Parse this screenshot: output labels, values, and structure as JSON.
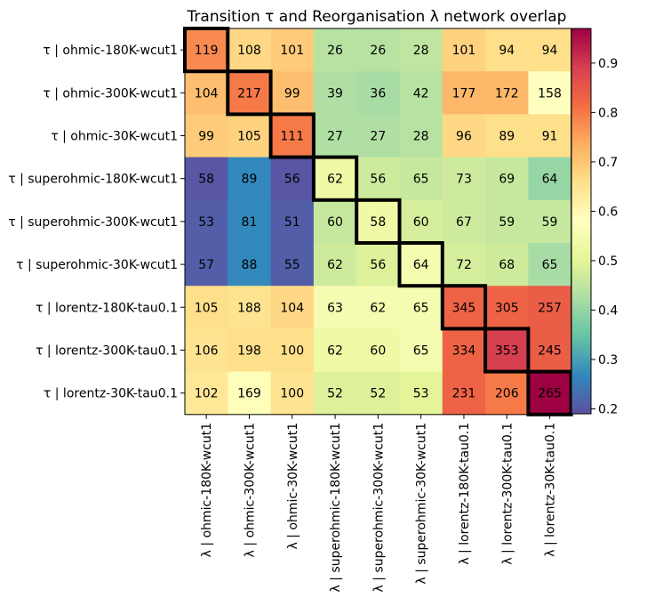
{
  "chart_data": {
    "type": "heatmap",
    "title": "Transition τ and Reorganisation λ network overlap",
    "rows": [
      "τ | ohmic-180K-wcut1",
      "τ | ohmic-300K-wcut1",
      "τ | ohmic-30K-wcut1",
      "τ | superohmic-180K-wcut1",
      "τ | superohmic-300K-wcut1",
      "τ | superohmic-30K-wcut1",
      "τ | lorentz-180K-tau0.1",
      "τ | lorentz-300K-tau0.1",
      "τ | lorentz-30K-tau0.1"
    ],
    "columns": [
      "λ | ohmic-180K-wcut1",
      "λ | ohmic-300K-wcut1",
      "λ | ohmic-30K-wcut1",
      "λ | superohmic-180K-wcut1",
      "λ | superohmic-300K-wcut1",
      "λ | superohmic-30K-wcut1",
      "λ | lorentz-180K-tau0.1",
      "λ | lorentz-300K-tau0.1",
      "λ | lorentz-30K-tau0.1"
    ],
    "cell_labels": [
      [
        119,
        108,
        101,
        26,
        26,
        28,
        101,
        94,
        94
      ],
      [
        104,
        217,
        99,
        39,
        36,
        42,
        177,
        172,
        158
      ],
      [
        99,
        105,
        111,
        27,
        27,
        28,
        96,
        89,
        91
      ],
      [
        58,
        89,
        56,
        62,
        56,
        65,
        73,
        69,
        64
      ],
      [
        53,
        81,
        51,
        60,
        58,
        60,
        67,
        59,
        59
      ],
      [
        57,
        88,
        55,
        62,
        56,
        64,
        72,
        68,
        65
      ],
      [
        105,
        188,
        104,
        63,
        62,
        65,
        345,
        305,
        257
      ],
      [
        106,
        198,
        100,
        62,
        60,
        65,
        334,
        353,
        245
      ],
      [
        102,
        169,
        100,
        52,
        52,
        53,
        231,
        206,
        265
      ]
    ],
    "color_values": [
      [
        0.78,
        0.67,
        0.69,
        0.44,
        0.44,
        0.45,
        0.68,
        0.66,
        0.66
      ],
      [
        0.71,
        0.8,
        0.71,
        0.43,
        0.42,
        0.44,
        0.72,
        0.72,
        0.58
      ],
      [
        0.69,
        0.68,
        0.8,
        0.43,
        0.43,
        0.44,
        0.67,
        0.66,
        0.66
      ],
      [
        0.2,
        0.27,
        0.2,
        0.53,
        0.47,
        0.46,
        0.47,
        0.46,
        0.4
      ],
      [
        0.21,
        0.27,
        0.21,
        0.46,
        0.53,
        0.48,
        0.47,
        0.46,
        0.46
      ],
      [
        0.21,
        0.27,
        0.21,
        0.47,
        0.49,
        0.55,
        0.48,
        0.47,
        0.42
      ],
      [
        0.66,
        0.65,
        0.67,
        0.55,
        0.55,
        0.55,
        0.83,
        0.83,
        0.84
      ],
      [
        0.65,
        0.66,
        0.66,
        0.53,
        0.53,
        0.55,
        0.83,
        0.89,
        0.84
      ],
      [
        0.64,
        0.57,
        0.65,
        0.49,
        0.49,
        0.5,
        0.83,
        0.8,
        0.97
      ]
    ],
    "colormap": "Spectral_r",
    "colorbar": {
      "range": [
        0.19,
        0.97
      ],
      "ticks": [
        0.2,
        0.3,
        0.4,
        0.5,
        0.6,
        0.7,
        0.8,
        0.9
      ]
    },
    "highlighted_blocks": [
      {
        "rows": [
          0,
          0
        ],
        "cols": [
          0,
          0
        ]
      },
      {
        "rows": [
          1,
          1
        ],
        "cols": [
          1,
          1
        ]
      },
      {
        "rows": [
          2,
          2
        ],
        "cols": [
          2,
          2
        ]
      },
      {
        "rows": [
          3,
          3
        ],
        "cols": [
          3,
          3
        ]
      },
      {
        "rows": [
          4,
          4
        ],
        "cols": [
          4,
          4
        ]
      },
      {
        "rows": [
          5,
          5
        ],
        "cols": [
          5,
          5
        ]
      },
      {
        "rows": [
          6,
          6
        ],
        "cols": [
          6,
          6
        ]
      },
      {
        "rows": [
          7,
          7
        ],
        "cols": [
          7,
          7
        ]
      },
      {
        "rows": [
          8,
          8
        ],
        "cols": [
          8,
          8
        ]
      }
    ],
    "grid": false,
    "legend": "colorbar-right"
  }
}
